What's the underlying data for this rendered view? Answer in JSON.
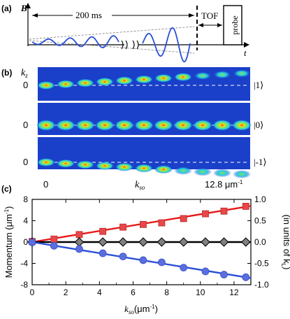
{
  "panel_a": {
    "label": "(a)",
    "y_axis_label": "B'",
    "duration": "200 ms",
    "tof_label": "TOF",
    "probe_label": "probe",
    "t_axis_label": "t"
  },
  "panel_b": {
    "label": "(b)",
    "y_axis_label": "k",
    "y_axis_sub": "z",
    "rows": [
      {
        "zero": "0",
        "state": "|1⟩"
      },
      {
        "zero": "0",
        "state": "|0⟩"
      },
      {
        "zero": "0",
        "state": "|-1⟩"
      }
    ],
    "x_left": "0",
    "x_mid": "k",
    "x_mid_sub": "so",
    "x_right": "12.8 μm",
    "x_right_sup": "-1",
    "n_columns": 11,
    "colors": {
      "background": "#1a3fc8",
      "cloud_outer": "#27c8e8",
      "cloud_mid": "#7ee85a",
      "cloud_inner": "#f2d21a",
      "cloud_core": "#e23a12"
    }
  },
  "panel_c": {
    "label": "(c)",
    "ylabel_left": "Momentum (μm",
    "ylabel_left_sup": "-1",
    "ylabel_left_end": ")",
    "ylabel_right": "(in units of k",
    "ylabel_right_sub": "L",
    "ylabel_right_end": ")",
    "xlabel": "k",
    "xlabel_sub": "so",
    "xlabel_unit": "(μm",
    "xlabel_unit_sup": "-1",
    "xlabel_unit_end": ")",
    "xticks": [
      "0",
      "2",
      "4",
      "6",
      "8",
      "10",
      "12"
    ],
    "yticks_left": [
      "8",
      "4",
      "0",
      "-4",
      "-8"
    ],
    "yticks_right": [
      "1.0",
      "0.5",
      "0.0",
      "-0.5",
      "-1.0"
    ]
  },
  "chart_data": {
    "type": "scatter",
    "xlim": [
      0,
      13
    ],
    "ylim": [
      -8,
      8
    ],
    "y2lim": [
      -1.0,
      1.0
    ],
    "series": [
      {
        "color": "#e8474a",
        "marker": "square",
        "x": [
          0,
          1.3,
          2.8,
          4.2,
          5.4,
          6.6,
          7.7,
          9.0,
          10.3,
          11.4,
          12.7
        ],
        "y": [
          0.1,
          0.55,
          1.4,
          2.0,
          2.8,
          3.3,
          3.6,
          4.4,
          5.3,
          5.8,
          6.7
        ]
      },
      {
        "color": "#808080",
        "marker": "diamond",
        "x": [
          0,
          2.8,
          4.2,
          5.4,
          6.6,
          7.7,
          9.0,
          10.3,
          11.4,
          12.7
        ],
        "y": [
          0,
          0,
          0,
          0,
          0,
          0,
          0,
          0,
          0,
          0
        ]
      },
      {
        "color": "#5a6ee0",
        "marker": "circle",
        "x": [
          0,
          1.3,
          2.8,
          4.2,
          5.4,
          6.6,
          7.7,
          9.0,
          10.3,
          11.4,
          12.7
        ],
        "y": [
          -0.05,
          -0.7,
          -1.3,
          -2.1,
          -2.7,
          -3.4,
          -3.8,
          -4.8,
          -5.5,
          -6.1,
          -6.6
        ]
      }
    ],
    "fits": [
      {
        "color": "#e81818",
        "slope": 0.52
      },
      {
        "color": "#000000",
        "slope": 0.0
      },
      {
        "color": "#2a4fd8",
        "slope": -0.52
      }
    ]
  }
}
